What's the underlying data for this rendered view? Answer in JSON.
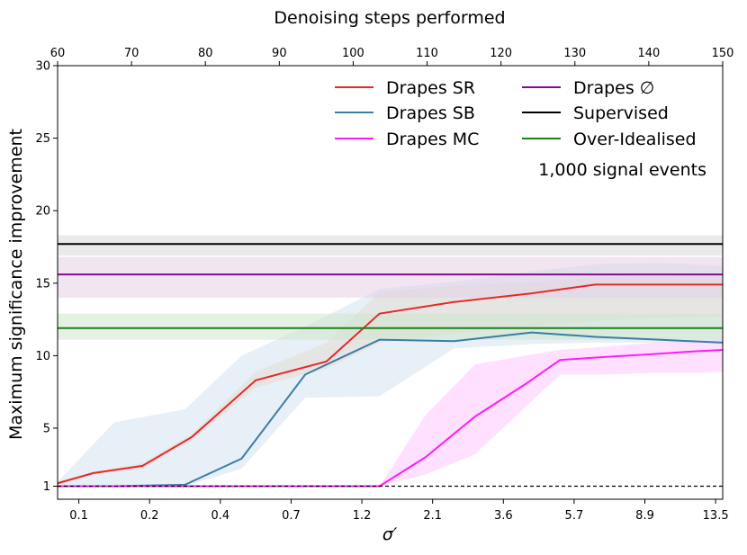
{
  "chart_data": {
    "type": "line",
    "title": "",
    "xlabel": "σ′",
    "ylabel": "Maximum significance improvement",
    "top_xlabel": "Denoising steps performed",
    "x_positions": [
      0,
      1,
      2,
      3,
      4,
      5,
      6,
      7,
      8,
      9
    ],
    "x_tick_labels": [
      "0.1",
      "0.2",
      "0.4",
      "0.7",
      "1.2",
      "2.1",
      "3.6",
      "5.7",
      "8.9",
      "13.5"
    ],
    "x_plot_values": [
      0.1,
      0.2,
      0.4,
      0.7,
      1.2,
      2.1,
      3.6,
      5.7,
      8.9,
      13.5
    ],
    "top_ticks": [
      60,
      70,
      80,
      90,
      100,
      110,
      120,
      130,
      140,
      150
    ],
    "xlim": [
      -0.3,
      9.1
    ],
    "ylim": [
      0.1,
      30
    ],
    "y_ticks": [
      1,
      5,
      10,
      15,
      20,
      25,
      30
    ],
    "annotation": "1,000 signal events",
    "legend_location": "top-right",
    "series": [
      {
        "name": "Drapes SR",
        "color": "#e8282a",
        "x": [
          -0.3,
          0.2,
          0.9,
          1.6,
          2.5,
          3.5,
          4.25,
          5.3,
          6.4,
          7.3,
          8.2,
          9.1
        ],
        "values": [
          1.2,
          1.9,
          2.4,
          4.4,
          8.3,
          9.6,
          12.9,
          13.7,
          14.3,
          14.9,
          14.9,
          14.9
        ],
        "band_upper": [
          1.2,
          2.0,
          2.6,
          4.6,
          8.9,
          10.9,
          14.4,
          14.8,
          15.1,
          15.4,
          15.5,
          15.6
        ],
        "band_lower": [
          1.1,
          1.8,
          2.2,
          4.2,
          7.8,
          9.1,
          10.9,
          11.5,
          12.0,
          12.4,
          12.6,
          12.7
        ],
        "band_color": "#f7d8b4"
      },
      {
        "name": "Drapes SB",
        "color": "#3b7da6",
        "x": [
          -0.3,
          0.5,
          1.5,
          2.3,
          3.2,
          4.25,
          5.3,
          6.4,
          7.3,
          8.2,
          9.1
        ],
        "values": [
          1.0,
          1.0,
          1.1,
          2.9,
          8.7,
          11.1,
          11.0,
          11.6,
          11.3,
          11.1,
          10.9
        ],
        "band_upper": [
          1.3,
          5.4,
          6.3,
          10.0,
          12.0,
          14.6,
          15.1,
          15.8,
          16.3,
          16.4,
          16.2
        ],
        "band_lower": [
          0.9,
          0.9,
          1.0,
          2.2,
          7.1,
          7.2,
          10.5,
          10.8,
          10.9,
          10.9,
          10.8
        ],
        "band_color": "#d3e2f0"
      },
      {
        "name": "Drapes MC",
        "color": "#ff1aff",
        "x": [
          -0.3,
          4.0,
          4.25,
          4.9,
          5.6,
          6.3,
          6.8,
          7.4,
          8.1,
          8.7,
          9.1
        ],
        "values": [
          1.0,
          1.0,
          1.0,
          3.0,
          5.8,
          8.0,
          9.7,
          9.9,
          10.1,
          10.3,
          10.4
        ],
        "band_upper": [
          1.0,
          1.0,
          1.0,
          5.9,
          9.4,
          10.0,
          10.4,
          10.6,
          10.9,
          11.0,
          11.1
        ],
        "band_lower": [
          1.0,
          1.0,
          1.0,
          1.8,
          3.2,
          6.4,
          8.7,
          8.7,
          8.8,
          8.8,
          8.9
        ],
        "band_color": "#ffc9ff"
      },
      {
        "name": "Drapes ∅",
        "color": "#800d8c",
        "x": [
          -0.3,
          9.1
        ],
        "values": [
          15.6,
          15.6
        ],
        "band_upper": [
          16.8,
          16.8
        ],
        "band_lower": [
          14.0,
          14.0
        ],
        "band_color": "#e4cfe6"
      },
      {
        "name": "Supervised",
        "color": "#000000",
        "x": [
          -0.3,
          9.1
        ],
        "values": [
          17.7,
          17.7
        ],
        "band_upper": [
          18.3,
          18.3
        ],
        "band_lower": [
          16.9,
          16.9
        ],
        "band_color": "#d9d9d9"
      },
      {
        "name": "Over-Idealised",
        "color": "#1e7e1a",
        "x": [
          -0.3,
          9.1
        ],
        "values": [
          11.9,
          11.9
        ],
        "band_upper": [
          12.9,
          12.9
        ],
        "band_lower": [
          11.1,
          11.1
        ],
        "band_color": "#cfe6cc"
      }
    ],
    "reference_line": {
      "y": 1,
      "style": "dashed",
      "color": "#000000"
    }
  }
}
